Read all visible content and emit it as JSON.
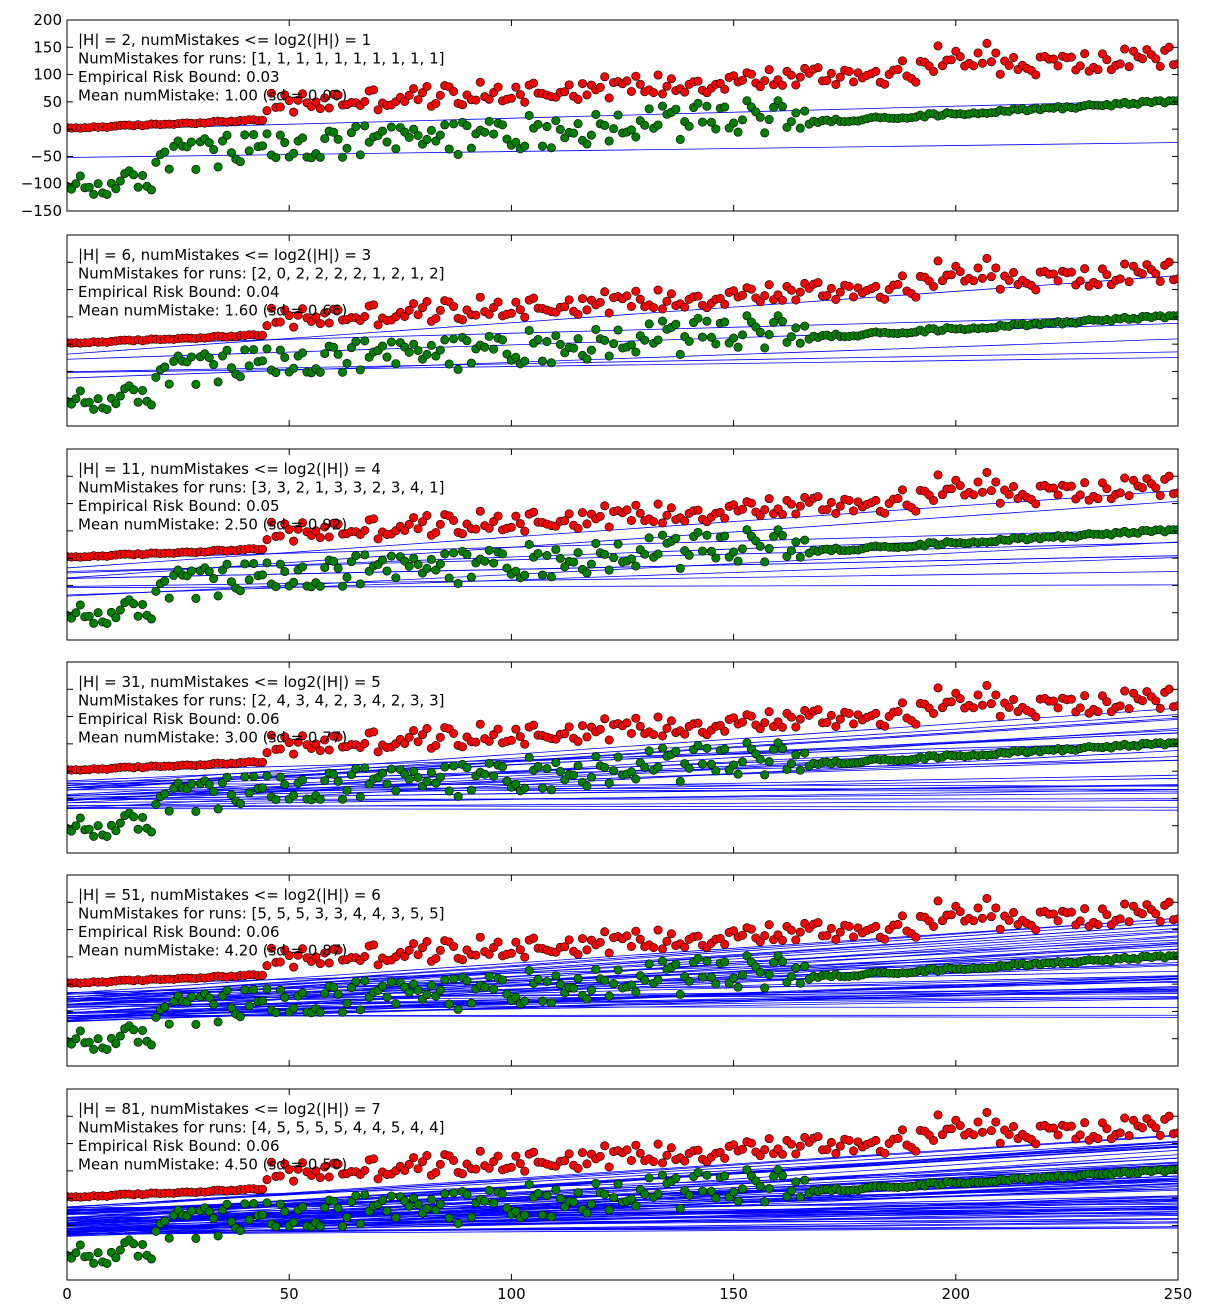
{
  "chart_data": {
    "type": "scatter",
    "xlim": [
      0,
      250
    ],
    "ylim": [
      -150,
      200
    ],
    "x_ticks": [
      0,
      50,
      100,
      150,
      200,
      250
    ],
    "y_ticks": [
      -150,
      -100,
      -50,
      0,
      50,
      100,
      150,
      200
    ],
    "colors": {
      "positive": "#ff0000",
      "negative": "#008000",
      "hypothesis": "#0000ff",
      "axes": "#000000"
    },
    "panels": [
      {
        "annotations": [
          "|H| = 2, numMistakes <= log2(|H|) = 1",
          "NumMistakes for runs: [1, 1, 1, 1, 1, 1, 1, 1, 1, 1]",
          "Empirical Risk Bound: 0.03",
          "Mean numMistake: 1.00 (sd = 0.00)"
        ],
        "hypothesis_count": 2,
        "show_y_ticklabels": true,
        "show_x_ticklabels": false
      },
      {
        "annotations": [
          "|H| = 6, numMistakes <= log2(|H|) = 3",
          "NumMistakes for runs: [2, 0, 2, 2, 2, 2, 1, 2, 1, 2]",
          "Empirical Risk Bound: 0.04",
          "Mean numMistake: 1.60 (sd = 0.66)"
        ],
        "hypothesis_count": 6,
        "show_y_ticklabels": false,
        "show_x_ticklabels": false
      },
      {
        "annotations": [
          "|H| = 11, numMistakes <= log2(|H|) = 4",
          "NumMistakes for runs: [3, 3, 2, 1, 3, 3, 2, 3, 4, 1]",
          "Empirical Risk Bound: 0.05",
          "Mean numMistake: 2.50 (sd = 0.92)"
        ],
        "hypothesis_count": 11,
        "show_y_ticklabels": false,
        "show_x_ticklabels": false
      },
      {
        "annotations": [
          "|H| = 31, numMistakes <= log2(|H|) = 5",
          "NumMistakes for runs: [2, 4, 3, 4, 2, 3, 4, 2, 3, 3]",
          "Empirical Risk Bound: 0.06",
          "Mean numMistake: 3.00 (sd = 0.77)"
        ],
        "hypothesis_count": 31,
        "show_y_ticklabels": false,
        "show_x_ticklabels": false
      },
      {
        "annotations": [
          "|H| = 51, numMistakes <= log2(|H|) = 6",
          "NumMistakes for runs: [5, 5, 5, 3, 3, 4, 4, 3, 5, 5]",
          "Empirical Risk Bound: 0.06",
          "Mean numMistake: 4.20 (sd = 0.87)"
        ],
        "hypothesis_count": 51,
        "show_y_ticklabels": false,
        "show_x_ticklabels": false
      },
      {
        "annotations": [
          "|H| = 81, numMistakes <= log2(|H|) = 7",
          "NumMistakes for runs: [4, 5, 5, 5, 5, 4, 4, 5, 4, 4]",
          "Empirical Risk Bound: 0.06",
          "Mean numMistake: 4.50 (sd = 0.50)"
        ],
        "hypothesis_count": 81,
        "show_y_ticklabels": false,
        "show_x_ticklabels": true
      }
    ]
  }
}
